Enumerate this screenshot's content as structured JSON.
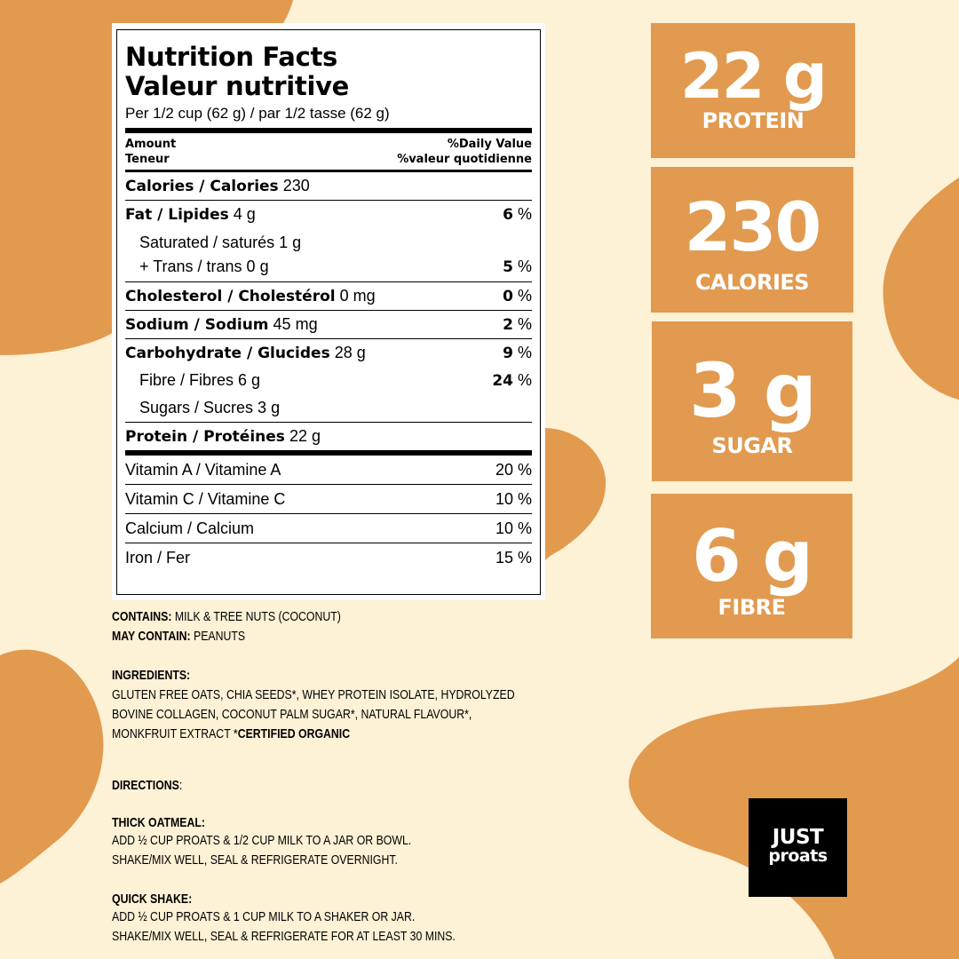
{
  "colors": {
    "background": "#fdf1d6",
    "accent": "#e29a4f",
    "label_bg": "#ffffff",
    "text": "#000000"
  },
  "label": {
    "title_en": "Nutrition Facts",
    "title_fr": "Valeur nutritive",
    "serving": "Per 1/2 cup (62 g) / par 1/2 tasse (62 g)",
    "amount_en": "Amount",
    "amount_fr": "Teneur",
    "dv_en": "%Daily Value",
    "dv_fr": "%valeur quotidienne",
    "calories": {
      "name": "Calories / Calories",
      "value": "230"
    },
    "fat": {
      "name": "Fat / Lipides",
      "value": "4 g",
      "pct": "6",
      "unit": " %"
    },
    "saturated": {
      "name": "Saturated / saturés 1 g",
      "trans": "+ Trans / trans 0 g",
      "pct": "5",
      "unit": " %"
    },
    "cholesterol": {
      "name": "Cholesterol / Cholestérol",
      "value": "0 mg",
      "pct": "0",
      "unit": " %"
    },
    "sodium": {
      "name": "Sodium / Sodium",
      "value": "45 mg",
      "pct": "2",
      "unit": " %"
    },
    "carbohydrate": {
      "name": "Carbohydrate / Glucides",
      "value": "28 g",
      "pct": "9",
      "unit": " %"
    },
    "fibre": {
      "name": "Fibre / Fibres 6 g",
      "pct": "24",
      "unit": " %"
    },
    "sugars": {
      "name": "Sugars / Sucres 3 g"
    },
    "protein": {
      "name": "Protein / Protéines",
      "value": "22 g"
    },
    "vitamins": [
      {
        "name": "Vitamin A / Vitamine A",
        "pct": "20 %"
      },
      {
        "name": "Vitamin C / Vitamine C",
        "pct": "10 %"
      },
      {
        "name": "Calcium / Calcium",
        "pct": "10 %"
      },
      {
        "name": "Iron / Fer",
        "pct": "15 %"
      }
    ]
  },
  "info": {
    "contains_label": "CONTAINS:",
    "contains_text": " MILK & TREE NUTS (COCONUT)",
    "may_contain_label": "MAY CONTAIN:",
    "may_contain_text": " PEANUTS",
    "ingredients_label": "INGREDIENTS:",
    "ingredients_line1": "GLUTEN FREE OATS, CHIA SEEDS*, WHEY PROTEIN ISOLATE, HYDROLYZED",
    "ingredients_line2": "BOVINE COLLAGEN, COCONUT PALM SUGAR*, NATURAL FLAVOUR*,",
    "ingredients_line3": "MONKFRUIT EXTRACT *",
    "certified": "CERTIFIED ORGANIC",
    "directions_label": "DIRECTIONS",
    "directions_colon": ":",
    "oatmeal_label": "THICK OATMEAL:",
    "oatmeal_line1": "ADD ½ CUP PROATS & 1/2 CUP MILK TO A JAR OR BOWL.",
    "oatmeal_line2": "SHAKE/MIX WELL, SEAL & REFRIGERATE OVERNIGHT.",
    "shake_label": "QUICK SHAKE:",
    "shake_line1": "ADD ½ CUP PROATS & 1 CUP MILK TO A SHAKER OR JAR.",
    "shake_line2": "SHAKE/MIX WELL, SEAL & REFRIGERATE FOR AT LEAST 30 MINS."
  },
  "stats": [
    {
      "value": "22 g",
      "label": "PROTEIN"
    },
    {
      "value": "230",
      "label": "CALORIES"
    },
    {
      "value": "3 g",
      "label": "SUGAR"
    },
    {
      "value": "6 g",
      "label": "FIBRE"
    }
  ],
  "logo": {
    "line1": "JUST",
    "line2": "proats"
  }
}
